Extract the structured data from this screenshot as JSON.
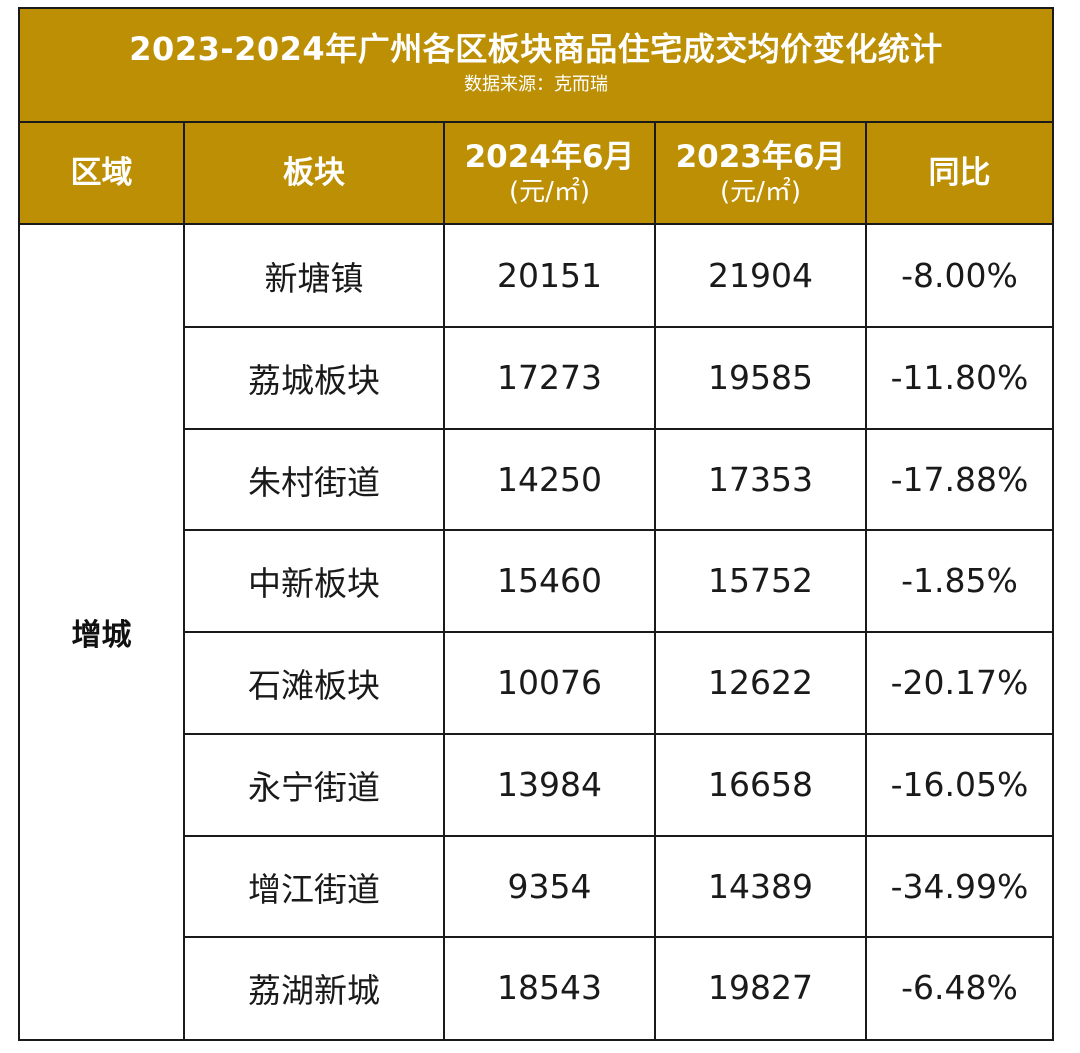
{
  "title": "2023-2024年广州各区板块商品住宅成交均价变化统计",
  "source": "数据来源：克而瑞",
  "headers": {
    "district": "区域",
    "block": "板块",
    "col2024": "2024年6月",
    "col2023": "2023年6月",
    "unit": "(元/㎡)",
    "yoy": "同比"
  },
  "district_name": "增城",
  "rows": [
    {
      "block": "新塘镇",
      "p2024": "20151",
      "p2023": "21904",
      "yoy": "-8.00%"
    },
    {
      "block": "荔城板块",
      "p2024": "17273",
      "p2023": "19585",
      "yoy": "-11.80%"
    },
    {
      "block": "朱村街道",
      "p2024": "14250",
      "p2023": "17353",
      "yoy": "-17.88%"
    },
    {
      "block": "中新板块",
      "p2024": "15460",
      "p2023": "15752",
      "yoy": "-1.85%"
    },
    {
      "block": "石滩板块",
      "p2024": "10076",
      "p2023": "12622",
      "yoy": "-20.17%"
    },
    {
      "block": "永宁街道",
      "p2024": "13984",
      "p2023": "16658",
      "yoy": "-16.05%"
    },
    {
      "block": "增江街道",
      "p2024": "9354",
      "p2023": "14389",
      "yoy": "-34.99%"
    },
    {
      "block": "荔湖新城",
      "p2024": "18543",
      "p2023": "19827",
      "yoy": "-6.48%"
    }
  ],
  "colors": {
    "header_bg": "#bc8f04",
    "header_text": "#ffffff",
    "border": "#1a1a1a"
  }
}
